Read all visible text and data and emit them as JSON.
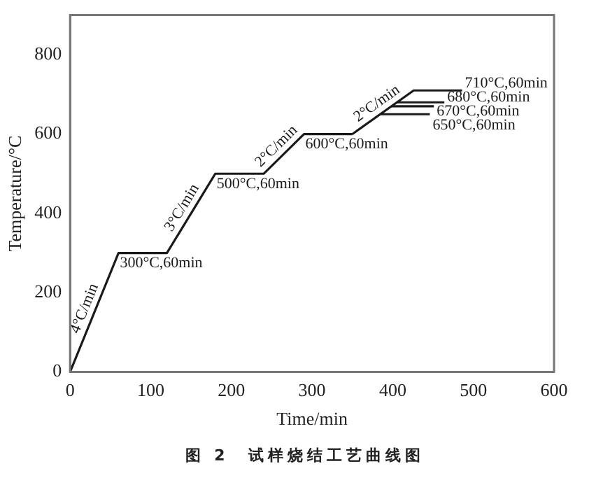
{
  "chart_data": {
    "type": "line",
    "xlabel": "Time/min",
    "ylabel": "Temperature/°C",
    "xlim": [
      0,
      600
    ],
    "xticks": [
      0,
      100,
      200,
      300,
      400,
      500,
      600
    ],
    "ylim": [
      0,
      900
    ],
    "yticks": [
      0,
      200,
      400,
      600,
      800
    ],
    "grid": false,
    "legend": false,
    "marker": "none",
    "line_style": "solid",
    "series": [
      {
        "color": "#1a1a1a",
        "x": [
          0,
          60,
          120,
          180,
          240,
          290,
          350
        ],
        "values": [
          0,
          300,
          300,
          500,
          500,
          600,
          600
        ]
      },
      {
        "color": "#1a1a1a",
        "x": [
          350,
          426,
          486
        ],
        "values": [
          600,
          710,
          710
        ]
      },
      {
        "color": "#1a1a1a",
        "x": [
          405,
          464
        ],
        "values": [
          680,
          680
        ]
      },
      {
        "color": "#1a1a1a",
        "x": [
          398,
          451
        ],
        "values": [
          670,
          670
        ]
      },
      {
        "color": "#1a1a1a",
        "x": [
          385,
          446
        ],
        "values": [
          650,
          650
        ]
      }
    ],
    "annotations": [
      {
        "text": "4°C/min",
        "x": 30,
        "y": 150
      },
      {
        "text": "3°C/min",
        "x": 150,
        "y": 400
      },
      {
        "text": "2°C/min",
        "x": 265,
        "y": 550
      },
      {
        "text": "2°C/min",
        "x": 388,
        "y": 655
      },
      {
        "text": "300°C,60min",
        "x": 60,
        "y": 300
      },
      {
        "text": "500°C,60min",
        "x": 180,
        "y": 500
      },
      {
        "text": "600°C,60min",
        "x": 290,
        "y": 600
      },
      {
        "text": "710°C,60min",
        "x": 486,
        "y": 710
      },
      {
        "text": "680°C,60min",
        "x": 464,
        "y": 680
      },
      {
        "text": "670°C,60min",
        "x": 451,
        "y": 670
      },
      {
        "text": "650°C,60min",
        "x": 446,
        "y": 650
      },
      "图 2　试样烧结工艺曲线图"
    ]
  }
}
